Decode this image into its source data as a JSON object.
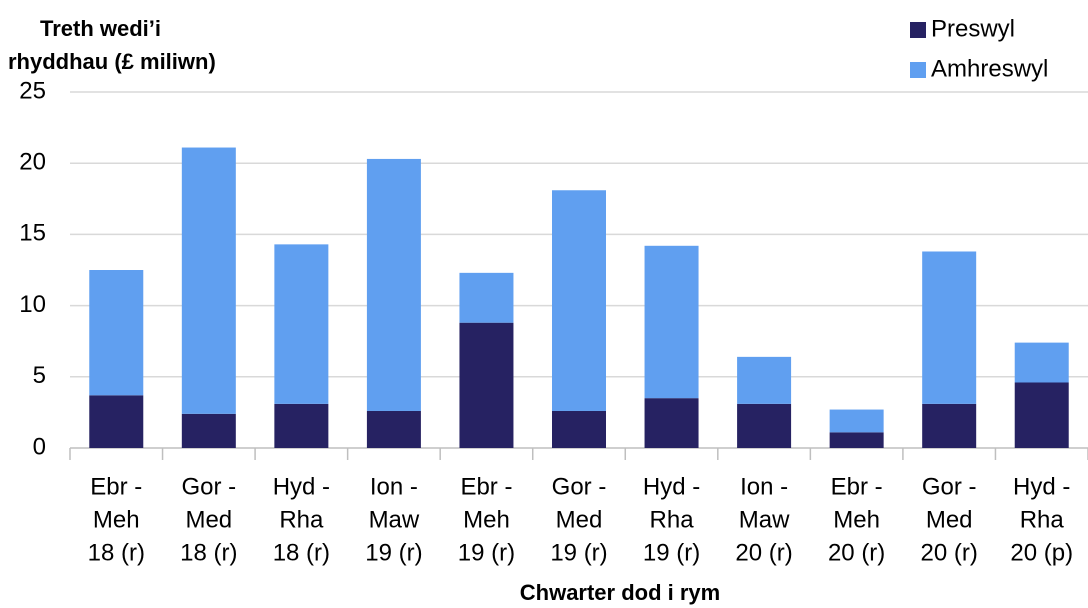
{
  "chart_data": {
    "type": "stacked_bar",
    "y_label": [
      "Treth wedi’i",
      "rhyddhau (£ miliwn)"
    ],
    "x_label": "Chwarter dod i rym",
    "categories": [
      [
        "Ebr -",
        "Meh",
        "18 (r)"
      ],
      [
        "Gor -",
        "Med",
        "18 (r)"
      ],
      [
        "Hyd -",
        "Rha",
        "18 (r)"
      ],
      [
        "Ion -",
        "Maw",
        "19 (r)"
      ],
      [
        "Ebr -",
        "Meh",
        "19 (r)"
      ],
      [
        "Gor -",
        "Med",
        "19 (r)"
      ],
      [
        "Hyd -",
        "Rha",
        "19 (r)"
      ],
      [
        "Ion -",
        "Maw",
        "20 (r)"
      ],
      [
        "Ebr -",
        "Meh",
        "20 (r)"
      ],
      [
        "Gor -",
        "Med",
        "20 (r)"
      ],
      [
        "Hyd -",
        "Rha",
        "20 (p)"
      ]
    ],
    "series": [
      {
        "name": "Preswyl",
        "color": "#262262",
        "values": [
          3.7,
          2.4,
          3.1,
          2.6,
          8.8,
          2.6,
          3.5,
          3.1,
          1.1,
          3.1,
          4.6
        ]
      },
      {
        "name": "Amhreswyl",
        "color": "#609ff0",
        "values": [
          8.8,
          18.7,
          11.2,
          17.7,
          3.5,
          15.5,
          10.7,
          3.3,
          1.6,
          10.7,
          2.8
        ]
      }
    ],
    "ylim": [
      0,
      25
    ],
    "yticks": [
      0,
      5,
      10,
      15,
      20,
      25
    ],
    "grid": true,
    "legend": "top-right"
  }
}
